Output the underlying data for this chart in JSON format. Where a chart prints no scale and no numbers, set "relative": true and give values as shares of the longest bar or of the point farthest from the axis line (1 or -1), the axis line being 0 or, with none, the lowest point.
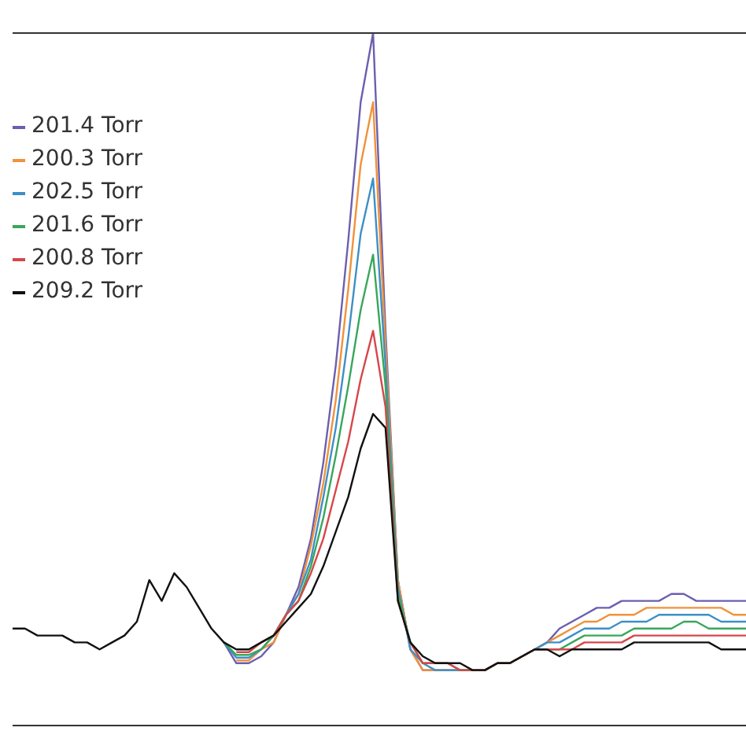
{
  "chart_data": {
    "type": "line",
    "relative": true,
    "legend": "top left",
    "tick_labels": false,
    "categories": [
      null,
      null,
      null,
      null,
      null,
      null,
      null,
      null,
      null,
      null,
      null,
      null,
      null,
      null,
      null,
      null,
      null,
      null,
      null,
      null,
      null,
      null,
      null,
      null,
      null,
      null,
      null,
      null,
      null,
      null,
      null,
      null,
      null,
      null,
      null,
      null,
      null,
      null,
      null,
      null,
      null,
      null,
      null,
      null,
      null,
      null,
      null,
      null,
      null,
      null,
      null,
      null,
      null,
      null,
      null,
      null,
      null,
      null,
      null,
      null
    ],
    "series": [
      {
        "name": "201.4 Torr",
        "color": "#6a5fb0",
        "values": [
          null,
          null,
          null,
          null,
          null,
          null,
          null,
          null,
          null,
          null,
          null,
          null,
          null,
          null,
          null,
          null,
          null,
          0.12,
          0.09,
          0.09,
          0.1,
          0.12,
          0.16,
          0.2,
          0.27,
          0.38,
          0.52,
          0.7,
          0.9,
          1,
          0.57,
          0.21,
          0.11,
          0.08,
          0.08,
          0.08,
          0.08,
          0.08,
          0.08,
          0.09,
          0.09,
          0.1,
          0.11,
          0.12,
          0.14,
          0.15,
          0.16,
          0.17,
          0.17,
          0.18,
          0.18,
          0.18,
          0.18,
          0.19,
          0.19,
          0.18,
          0.18,
          0.18,
          0.18,
          0.18
        ]
      },
      {
        "name": "200.3 Torr",
        "color": "#f0923a",
        "values": [
          null,
          null,
          null,
          null,
          null,
          null,
          null,
          null,
          null,
          null,
          null,
          null,
          null,
          null,
          null,
          null,
          null,
          null,
          0.094,
          0.094,
          0.11,
          0.12,
          0.16,
          0.19,
          0.26,
          0.35,
          0.47,
          0.63,
          0.81,
          0.9,
          0.55,
          0.21,
          0.11,
          0.08,
          0.08,
          0.08,
          0.08,
          0.08,
          0.08,
          0.09,
          0.09,
          0.1,
          0.11,
          0.12,
          0.13,
          0.14,
          0.15,
          0.15,
          0.16,
          0.16,
          0.16,
          0.17,
          0.17,
          0.17,
          0.17,
          0.17,
          0.17,
          0.17,
          0.16,
          0.16
        ]
      },
      {
        "name": "202.5 Torr",
        "color": "#3d8fc6",
        "values": [
          null,
          null,
          null,
          null,
          null,
          null,
          null,
          null,
          null,
          null,
          null,
          null,
          null,
          null,
          null,
          null,
          null,
          0.12,
          0.098,
          0.098,
          0.11,
          0.13,
          0.16,
          0.19,
          0.24,
          0.33,
          0.43,
          0.56,
          0.71,
          0.79,
          0.52,
          0.2,
          0.11,
          0.09,
          0.08,
          0.08,
          0.08,
          0.08,
          0.08,
          0.09,
          0.09,
          0.1,
          0.11,
          0.12,
          0.12,
          0.13,
          0.14,
          0.14,
          0.14,
          0.15,
          0.15,
          0.15,
          0.16,
          0.16,
          0.16,
          0.16,
          0.16,
          0.15,
          0.15,
          0.15
        ]
      },
      {
        "name": "201.6 Torr",
        "color": "#3aa65a",
        "values": [
          null,
          null,
          null,
          null,
          null,
          null,
          null,
          null,
          null,
          null,
          null,
          null,
          null,
          null,
          null,
          null,
          null,
          0.12,
          0.102,
          0.102,
          0.11,
          0.13,
          0.16,
          0.18,
          0.23,
          0.3,
          0.39,
          0.49,
          0.6,
          0.68,
          0.49,
          0.19,
          0.12,
          0.09,
          0.09,
          0.09,
          0.08,
          0.08,
          0.08,
          0.09,
          0.09,
          0.1,
          0.11,
          0.11,
          0.11,
          0.12,
          0.13,
          0.13,
          0.13,
          0.13,
          0.14,
          0.14,
          0.14,
          0.14,
          0.15,
          0.15,
          0.14,
          0.14,
          0.14,
          0.14
        ]
      },
      {
        "name": "200.8 Torr",
        "color": "#d6474a",
        "values": [
          null,
          null,
          null,
          null,
          null,
          null,
          null,
          null,
          null,
          null,
          null,
          null,
          null,
          null,
          null,
          null,
          null,
          null,
          0.106,
          0.106,
          0.12,
          0.13,
          0.16,
          0.18,
          0.22,
          0.27,
          0.34,
          0.41,
          0.5,
          0.57,
          0.46,
          0.18,
          0.12,
          0.09,
          0.09,
          0.09,
          0.08,
          0.08,
          0.08,
          0.09,
          0.09,
          0.1,
          0.11,
          0.11,
          0.11,
          0.11,
          0.12,
          0.12,
          0.12,
          0.12,
          0.13,
          0.13,
          0.13,
          0.13,
          0.13,
          0.13,
          0.13,
          0.13,
          0.13,
          0.13
        ]
      },
      {
        "name": "209.2 Torr",
        "color": "#111111",
        "values": [
          0.14,
          0.14,
          0.13,
          0.13,
          0.13,
          0.12,
          0.12,
          0.11,
          0.12,
          0.13,
          0.15,
          0.21,
          0.18,
          0.22,
          0.2,
          0.17,
          0.14,
          0.12,
          0.11,
          0.11,
          0.12,
          0.13,
          0.15,
          0.17,
          0.19,
          0.23,
          0.28,
          0.33,
          0.4,
          0.45,
          0.43,
          0.18,
          0.12,
          0.1,
          0.09,
          0.09,
          0.09,
          0.08,
          0.08,
          0.09,
          0.09,
          0.1,
          0.11,
          0.11,
          0.1,
          0.11,
          0.11,
          0.11,
          0.11,
          0.11,
          0.12,
          0.12,
          0.12,
          0.12,
          0.12,
          0.12,
          0.12,
          0.11,
          0.11,
          0.11
        ]
      }
    ]
  }
}
